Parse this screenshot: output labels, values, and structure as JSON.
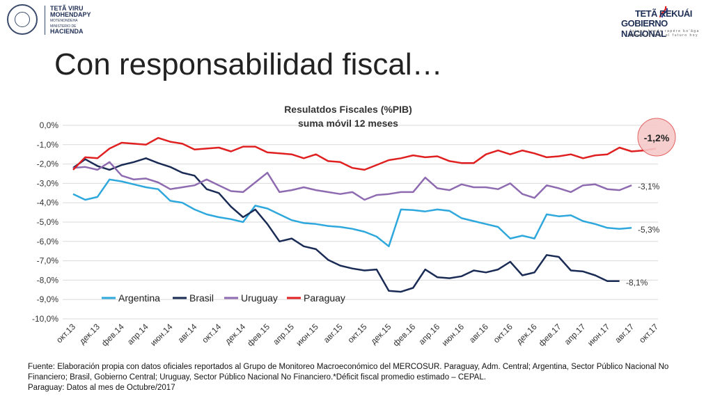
{
  "header": {
    "logo_left": {
      "lines": [
        "TETÃ VIRU",
        "MOHENDAPY",
        "MOTENONDEHA",
        "MINISTERIO DE",
        "HACIENDA"
      ],
      "seal": "seal-icon"
    },
    "logo_right": {
      "lines": [
        "TETÃ REKUÁI",
        "GOBIERNO NACIONAL",
        "Jajapo hende rapére ko'ãga guive",
        "Construyendo el futuro hoy"
      ],
      "flag": "flag-icon"
    },
    "title": "Con responsabilidad fiscal…"
  },
  "chart_data": {
    "type": "line",
    "title": "Resulatdos Fiscales (%PIB)",
    "subtitle": "suma móvil 12 meses",
    "ylim": [
      -10,
      0
    ],
    "yticks": [
      "0,0%",
      "-1,0%",
      "-2,0%",
      "-3,0%",
      "-4,0%",
      "-5,0%",
      "-6,0%",
      "-7,0%",
      "-8,0%",
      "-9,0%",
      "-10,0%"
    ],
    "xticks": [
      "окт.13",
      "дек.13",
      "фев.14",
      "апр.14",
      "июн.14",
      "авг.14",
      "окт.14",
      "дек.14",
      "фев.15",
      "апр.15",
      "июн.15",
      "авг.15",
      "окт.15",
      "дек.15",
      "фев.16",
      "апр.16",
      "июн.16",
      "авг.16",
      "окт.16",
      "дек.16",
      "фев.17",
      "апр.17",
      "июн.17",
      "авг.17",
      "окт.17"
    ],
    "grid": true,
    "legend_position": "bottom-left",
    "series": [
      {
        "name": "Argentina",
        "color": "#2ea8dc",
        "end_label": "-5,3%",
        "values": [
          -3.55,
          -3.85,
          -3.7,
          -2.8,
          -2.9,
          -3.05,
          -3.2,
          -3.3,
          -3.9,
          -4.0,
          -4.35,
          -4.6,
          -4.75,
          -4.85,
          -5.0,
          -4.15,
          -4.3,
          -4.6,
          -4.9,
          -5.05,
          -5.1,
          -5.2,
          -5.25,
          -5.35,
          -5.5,
          -5.75,
          -6.25,
          -4.35,
          -4.38,
          -4.45,
          -4.35,
          -4.42,
          -4.8,
          -4.95,
          -5.1,
          -5.25,
          -5.85,
          -5.7,
          -5.85,
          -4.6,
          -4.7,
          -4.65,
          -4.95,
          -5.1,
          -5.3,
          -5.35,
          -5.3
        ]
      },
      {
        "name": "Brasil",
        "color": "#1a2b55",
        "end_label": "-8,1%",
        "values": [
          -2.2,
          -1.75,
          -2.1,
          -2.3,
          -2.05,
          -1.9,
          -1.7,
          -1.95,
          -2.15,
          -2.45,
          -2.6,
          -3.3,
          -3.5,
          -4.2,
          -4.75,
          -4.35,
          -5.1,
          -6.0,
          -5.85,
          -6.25,
          -6.4,
          -6.95,
          -7.25,
          -7.4,
          -7.5,
          -7.45,
          -8.55,
          -8.6,
          -8.4,
          -7.45,
          -7.85,
          -7.9,
          -7.8,
          -7.5,
          -7.6,
          -7.45,
          -7.05,
          -7.75,
          -7.6,
          -6.7,
          -6.8,
          -7.5,
          -7.55,
          -7.75,
          -8.05,
          -8.05
        ]
      },
      {
        "name": "Uruguay",
        "color": "#8e6bb0",
        "end_label": "-3,1%",
        "values": [
          -2.2,
          -2.15,
          -2.3,
          -1.9,
          -2.6,
          -2.8,
          -2.75,
          -2.95,
          -3.3,
          -3.2,
          -3.1,
          -2.8,
          -3.1,
          -3.4,
          -3.45,
          -2.95,
          -2.45,
          -3.45,
          -3.35,
          -3.2,
          -3.35,
          -3.45,
          -3.55,
          -3.45,
          -3.85,
          -3.6,
          -3.55,
          -3.45,
          -3.45,
          -2.7,
          -3.25,
          -3.35,
          -3.05,
          -3.2,
          -3.2,
          -3.3,
          -3.0,
          -3.55,
          -3.75,
          -3.1,
          -3.25,
          -3.45,
          -3.1,
          -3.05,
          -3.3,
          -3.35,
          -3.1
        ]
      },
      {
        "name": "Paraguay",
        "color": "#e02020",
        "end_label": "-1,2%",
        "values": [
          -2.3,
          -1.65,
          -1.7,
          -1.2,
          -0.9,
          -0.95,
          -1.0,
          -0.65,
          -0.85,
          -0.95,
          -1.25,
          -1.2,
          -1.15,
          -1.35,
          -1.1,
          -1.1,
          -1.4,
          -1.45,
          -1.5,
          -1.7,
          -1.5,
          -1.85,
          -1.9,
          -2.2,
          -2.3,
          -2.05,
          -1.8,
          -1.7,
          -1.55,
          -1.65,
          -1.6,
          -1.85,
          -1.95,
          -1.95,
          -1.5,
          -1.3,
          -1.5,
          -1.3,
          -1.45,
          -1.65,
          -1.6,
          -1.5,
          -1.7,
          -1.55,
          -1.5,
          -1.15,
          -1.35,
          -1.3,
          -1.2
        ]
      }
    ]
  },
  "footnote": {
    "line1": "Fuente: Elaboración propia con datos oficiales reportados al Grupo de Monitoreo Macroeconómico del MERCOSUR. Paraguay, Adm. Central; Argentina, Sector Público Nacional No Financiero; Brasil, Gobierno Central; Uruguay, Sector Público Nacional No Financiero.*Déficit fiscal promedio estimado – CEPAL.",
    "line2": "Paraguay: Datos al mes de Octubre/2017"
  }
}
